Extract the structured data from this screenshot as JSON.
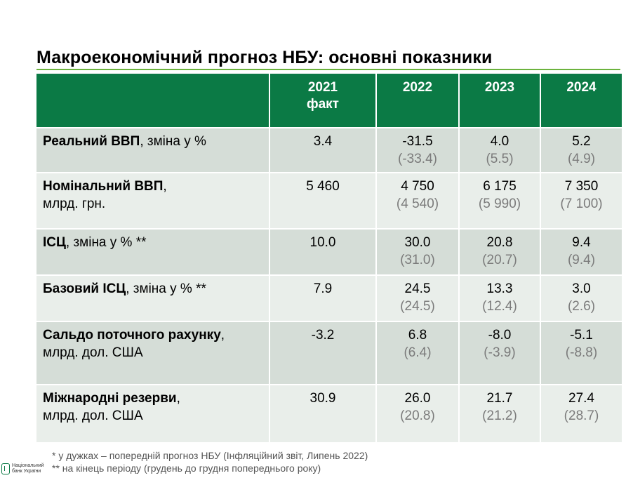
{
  "title": "Макроекономічний прогноз НБУ: основні показники",
  "header": {
    "columns": [
      {
        "line1": "2021",
        "line2": "факт"
      },
      {
        "line1": "2022",
        "line2": ""
      },
      {
        "line1": "2023",
        "line2": ""
      },
      {
        "line1": "2024",
        "line2": ""
      }
    ]
  },
  "rows": [
    {
      "label_bold": "Реальний ВВП",
      "label_rest": ", зміна у %",
      "values": [
        {
          "main": "3.4",
          "prev": ""
        },
        {
          "main": "-31.5",
          "prev": "(-33.4)"
        },
        {
          "main": "4.0",
          "prev": "(5.5)"
        },
        {
          "main": "5.2",
          "prev": "(4.9)"
        }
      ]
    },
    {
      "label_bold": "Номінальний ВВП",
      "label_rest": ",\nмлрд. грн.",
      "values": [
        {
          "main": "5 460",
          "prev": ""
        },
        {
          "main": "4 750",
          "prev": "(4 540)"
        },
        {
          "main": "6 175",
          "prev": "(5 990)"
        },
        {
          "main": "7 350",
          "prev": "(7 100)"
        }
      ]
    },
    {
      "label_bold": "ІСЦ",
      "label_rest": ", зміна у % **",
      "values": [
        {
          "main": "10.0",
          "prev": ""
        },
        {
          "main": "30.0",
          "prev": "(31.0)"
        },
        {
          "main": "20.8",
          "prev": "(20.7)"
        },
        {
          "main": "9.4",
          "prev": "(9.4)"
        }
      ]
    },
    {
      "label_bold": "Базовий ІСЦ",
      "label_rest": ", зміна у % **",
      "values": [
        {
          "main": "7.9",
          "prev": ""
        },
        {
          "main": "24.5",
          "prev": "(24.5)"
        },
        {
          "main": "13.3",
          "prev": "(12.4)"
        },
        {
          "main": "3.0",
          "prev": "(2.6)"
        }
      ]
    },
    {
      "label_bold": "Сальдо поточного рахунку",
      "label_rest": ",\nмлрд. дол. США",
      "values": [
        {
          "main": "-3.2",
          "prev": ""
        },
        {
          "main": "6.8",
          "prev": "(6.4)"
        },
        {
          "main": "-8.0",
          "prev": "(-3.9)"
        },
        {
          "main": "-5.1",
          "prev": "(-8.8)"
        }
      ]
    },
    {
      "label_bold": "Міжнародні резерви",
      "label_rest": ",\nмлрд. дол. США",
      "values": [
        {
          "main": "30.9",
          "prev": ""
        },
        {
          "main": "26.0",
          "prev": "(20.8)"
        },
        {
          "main": "21.7",
          "prev": "(21.2)"
        },
        {
          "main": "27.4",
          "prev": "(28.7)"
        }
      ]
    }
  ],
  "footnotes": [
    "* у дужках – попередній прогноз НБУ (Інфляційний звіт, Липень 2022)",
    "** на кінець періоду (грудень до грудня попереднього року)"
  ],
  "logo": {
    "icon": "nbu-logo-icon",
    "line1": "Національний",
    "line2": "банк України"
  },
  "colors": {
    "header_bg": "#0b7a45",
    "row_dark": "#d5ddd7",
    "row_light": "#e9eeea",
    "rule": "#6cb33e",
    "prev_text": "#7b7b7b"
  }
}
